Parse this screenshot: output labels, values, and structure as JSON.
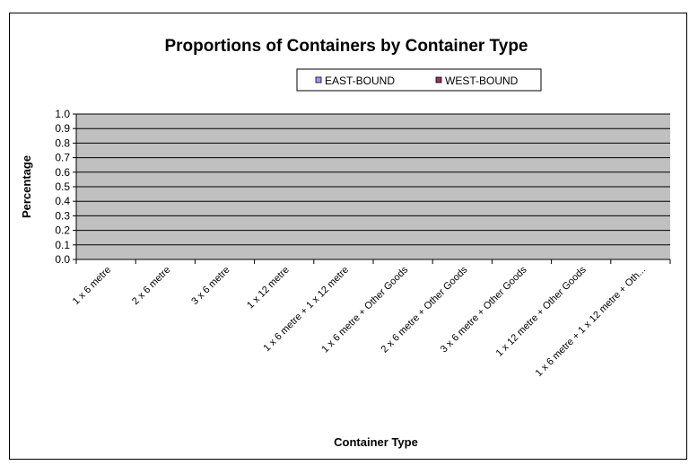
{
  "chart_data": {
    "type": "bar",
    "title": "Proportions of Containers by Container Type",
    "xlabel": "Container Type",
    "ylabel": "Percentage",
    "ylim": [
      0,
      1.0
    ],
    "yticks": [
      "0.0",
      "0.1",
      "0.2",
      "0.3",
      "0.4",
      "0.5",
      "0.6",
      "0.7",
      "0.8",
      "0.9",
      "1.0"
    ],
    "grid": true,
    "legend_position": "top-right",
    "categories": [
      "1 x 6 metre",
      "2 x 6 metre",
      "3 x 6 metre",
      "1 x 12 metre",
      "1 x 6 metre + 1 x 12 metre",
      "1 x 6 metre + Other Goods",
      "2 x 6 metre + Other Goods",
      "3 x 6 metre + Other Goods",
      "1 x 12 metre + Other Goods",
      "1 x 6 metre + 1 x 12 metre + Oth..."
    ],
    "series": [
      {
        "name": "EAST-BOUND",
        "color": "#9999ff",
        "values": [
          0,
          0,
          0,
          0,
          0,
          0,
          0,
          0,
          0,
          0
        ]
      },
      {
        "name": "WEST-BOUND",
        "color": "#993366",
        "values": [
          0,
          0,
          0,
          0,
          0,
          0,
          0,
          0,
          0,
          0
        ]
      }
    ],
    "plot_background": "#c0c0c0"
  }
}
